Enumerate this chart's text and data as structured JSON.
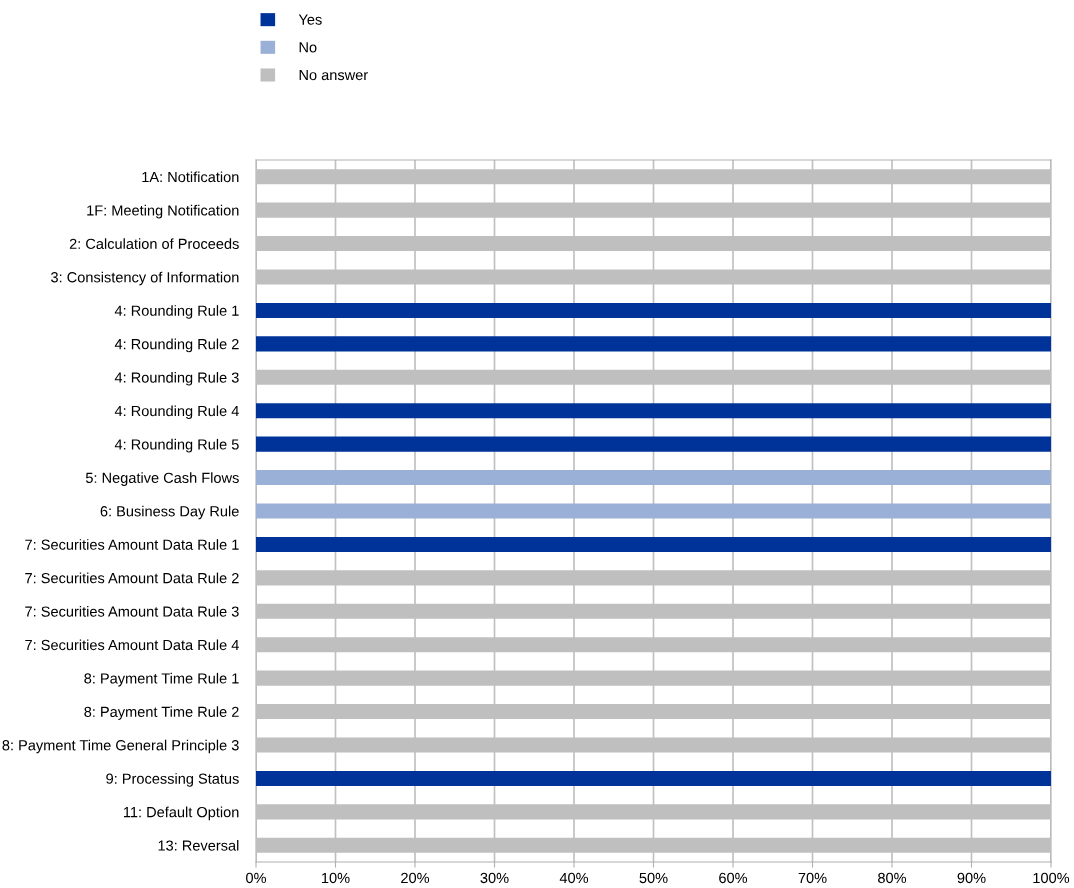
{
  "chart_data": {
    "type": "bar",
    "orientation": "horizontal",
    "stacked": true,
    "categories": [
      "1A: Notification",
      "1F: Meeting Notification",
      "2: Calculation of Proceeds",
      "3: Consistency of Information",
      "4: Rounding Rule 1",
      "4: Rounding Rule 2",
      "4: Rounding Rule 3",
      "4: Rounding Rule 4",
      "4: Rounding Rule 5",
      "5: Negative Cash Flows",
      "6: Business Day Rule",
      "7: Securities Amount Data Rule 1",
      "7: Securities Amount Data Rule 2",
      "7: Securities Amount Data Rule 3",
      "7: Securities Amount Data Rule 4",
      "8: Payment Time Rule 1",
      "8: Payment Time Rule 2",
      "8: Payment Time General Principle 3",
      "9: Processing Status",
      "11: Default Option",
      "13: Reversal"
    ],
    "series": [
      {
        "name": "Yes",
        "color": "#003399",
        "values": [
          0,
          0,
          0,
          0,
          100,
          100,
          0,
          100,
          100,
          0,
          0,
          100,
          0,
          0,
          0,
          0,
          0,
          0,
          100,
          0,
          0
        ]
      },
      {
        "name": "No",
        "color": "#9bb0d6",
        "values": [
          0,
          0,
          0,
          0,
          0,
          0,
          0,
          0,
          0,
          100,
          100,
          0,
          0,
          0,
          0,
          0,
          0,
          0,
          0,
          0,
          0
        ]
      },
      {
        "name": "No answer",
        "color": "#bfbfbf",
        "values": [
          100,
          100,
          100,
          100,
          0,
          0,
          100,
          0,
          0,
          0,
          0,
          0,
          100,
          100,
          100,
          100,
          100,
          100,
          0,
          100,
          100
        ]
      }
    ],
    "xlim": [
      0,
      100
    ],
    "xticks": [
      {
        "value": 0,
        "label": "0%"
      },
      {
        "value": 10,
        "label": "10%"
      },
      {
        "value": 20,
        "label": "20%"
      },
      {
        "value": 30,
        "label": "30%"
      },
      {
        "value": 40,
        "label": "40%"
      },
      {
        "value": 50,
        "label": "50%"
      },
      {
        "value": 60,
        "label": "60%"
      },
      {
        "value": 70,
        "label": "70%"
      },
      {
        "value": 80,
        "label": "80%"
      },
      {
        "value": 90,
        "label": "90%"
      },
      {
        "value": 100,
        "label": "100%"
      }
    ],
    "grid": "x",
    "legend": "top left"
  }
}
